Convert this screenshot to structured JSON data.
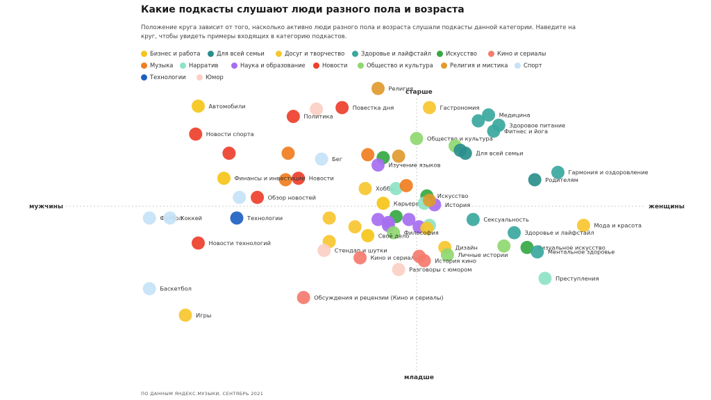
{
  "title": "Какие подкасты слушают люди разного пола и возраста",
  "subtitle": "Положение круга зависит от того, насколько активно люди разного пола и возраста слушали подкасты данной категории. Наведите на круг, чтобы увидеть примеры входящих в категорию подкастов.",
  "source": "ПО ДАННЫМ ЯНДЕКС.МУЗЫКИ, СЕНТЯБРЬ 2021",
  "axes": {
    "top": "старше",
    "bottom": "младше",
    "left": "мужчины",
    "right": "женщины"
  },
  "chart_data": {
    "type": "scatter",
    "title": "Какие подкасты слушают люди разного пола и возраста",
    "xlabel": "мужчины ↔ женщины",
    "ylabel": "младше ↔ старше",
    "xlim": [
      -1,
      1
    ],
    "ylim": [
      -1,
      1
    ],
    "grid": false,
    "legend_position": "top",
    "categories": [
      {
        "name": "Бизнес и работа",
        "color": "#f5c518"
      },
      {
        "name": "Для всей семьи",
        "color": "#2a8f8c"
      },
      {
        "name": "Досуг и творчество",
        "color": "#f7c62f"
      },
      {
        "name": "Здоровье и лайфстайл",
        "color": "#3aa89e"
      },
      {
        "name": "Искусство",
        "color": "#35a843"
      },
      {
        "name": "Кино и сериалы",
        "color": "#f57b6e"
      },
      {
        "name": "Музыка",
        "color": "#f07d1e"
      },
      {
        "name": "Нарратив",
        "color": "#8de3c6"
      },
      {
        "name": "Наука и образование",
        "color": "#a66ef0"
      },
      {
        "name": "Новости",
        "color": "#ee3f2d"
      },
      {
        "name": "Общество и культура",
        "color": "#8ed870"
      },
      {
        "name": "Религия и мистика",
        "color": "#e09a2c"
      },
      {
        "name": "Спорт",
        "color": "#c6e2f7"
      },
      {
        "name": "Технологии",
        "color": "#1f5fc1"
      },
      {
        "name": "Юмор",
        "color": "#fbcfc4"
      }
    ],
    "points": [
      {
        "label": "Религия",
        "category": "Религия и мистика",
        "x": -0.15,
        "y": 0.8
      },
      {
        "label": "Автомобили",
        "category": "Бизнес и работа",
        "x": -0.85,
        "y": 0.68
      },
      {
        "label": "Повестка дня",
        "category": "Новости",
        "x": -0.29,
        "y": 0.67
      },
      {
        "label": "",
        "category": "Юмор",
        "x": -0.39,
        "y": 0.66
      },
      {
        "label": "Политика",
        "category": "Новости",
        "x": -0.48,
        "y": 0.61
      },
      {
        "label": "Гастрономия",
        "category": "Досуг и творчество",
        "x": 0.05,
        "y": 0.67
      },
      {
        "label": "Медицина",
        "category": "Здоровье и лайфстайл",
        "x": 0.28,
        "y": 0.62
      },
      {
        "label": "",
        "category": "Здоровье и лайфстайл",
        "x": 0.24,
        "y": 0.58
      },
      {
        "label": "Здоровое питание",
        "category": "Здоровье и лайфстайл",
        "x": 0.32,
        "y": 0.55
      },
      {
        "label": "Фитнес и йога",
        "category": "Здоровье и лайфстайл",
        "x": 0.3,
        "y": 0.51
      },
      {
        "label": "Новости спорта",
        "category": "Новости",
        "x": -0.86,
        "y": 0.49
      },
      {
        "label": "Общество и культура",
        "category": "Общество и культура",
        "x": 0.0,
        "y": 0.46
      },
      {
        "label": "",
        "category": "Общество и культура",
        "x": 0.15,
        "y": 0.41
      },
      {
        "label": "",
        "category": "Для всей семьи",
        "x": 0.17,
        "y": 0.38
      },
      {
        "label": "Для всей семьи",
        "category": "Для всей семьи",
        "x": 0.19,
        "y": 0.36
      },
      {
        "label": "",
        "category": "Новости",
        "x": -0.73,
        "y": 0.36
      },
      {
        "label": "",
        "category": "Музыка",
        "x": -0.5,
        "y": 0.36
      },
      {
        "label": "Бег",
        "category": "Спорт",
        "x": -0.37,
        "y": 0.32
      },
      {
        "label": "Новости",
        "category": "Новости",
        "x": -0.46,
        "y": 0.19
      },
      {
        "label": "",
        "category": "Музыка",
        "x": -0.51,
        "y": 0.18
      },
      {
        "label": "",
        "category": "Музыка",
        "x": -0.19,
        "y": 0.35
      },
      {
        "label": "",
        "category": "Искусство",
        "x": -0.13,
        "y": 0.33
      },
      {
        "label": "",
        "category": "Религия и мистика",
        "x": -0.07,
        "y": 0.34
      },
      {
        "label": "Изучение языков",
        "category": "Наука и образование",
        "x": -0.15,
        "y": 0.28
      },
      {
        "label": "Гармония и оздоровление",
        "category": "Здоровье и лайфстайл",
        "x": 0.55,
        "y": 0.23
      },
      {
        "label": "Родителям",
        "category": "Для всей семьи",
        "x": 0.46,
        "y": 0.18
      },
      {
        "label": "Финансы и инвестиции",
        "category": "Бизнес и работа",
        "x": -0.75,
        "y": 0.19
      },
      {
        "label": "Хобби",
        "category": "Досуг и творчество",
        "x": -0.2,
        "y": 0.12
      },
      {
        "label": "",
        "category": "Нарратив",
        "x": -0.08,
        "y": 0.12
      },
      {
        "label": "",
        "category": "Музыка",
        "x": -0.04,
        "y": 0.14
      },
      {
        "label": "Искусство",
        "category": "Искусство",
        "x": 0.04,
        "y": 0.07
      },
      {
        "label": "Обзор новостей",
        "category": "Новости",
        "x": -0.62,
        "y": 0.06
      },
      {
        "label": "",
        "category": "Спорт",
        "x": -0.69,
        "y": 0.06
      },
      {
        "label": "Карьера",
        "category": "Бизнес и работа",
        "x": -0.13,
        "y": 0.02
      },
      {
        "label": "История",
        "category": "Наука и образование",
        "x": 0.07,
        "y": 0.01
      },
      {
        "label": "",
        "category": "Нарратив",
        "x": 0.03,
        "y": 0.02
      },
      {
        "label": "",
        "category": "Религия и мистика",
        "x": 0.05,
        "y": 0.04
      },
      {
        "label": "Футбол",
        "category": "Спорт",
        "x": -1.04,
        "y": -0.08
      },
      {
        "label": "Хоккей",
        "category": "Спорт",
        "x": -0.96,
        "y": -0.08
      },
      {
        "label": "Технологии",
        "category": "Технологии",
        "x": -0.7,
        "y": -0.08
      },
      {
        "label": "",
        "category": "Досуг и творчество",
        "x": -0.34,
        "y": -0.08
      },
      {
        "label": "",
        "category": "Искусство",
        "x": -0.08,
        "y": -0.07
      },
      {
        "label": "Сексуальность",
        "category": "Здоровье и лайфстайл",
        "x": 0.22,
        "y": -0.09
      },
      {
        "label": "",
        "category": "Наука и образование",
        "x": -0.15,
        "y": -0.09
      },
      {
        "label": "",
        "category": "Наука и образование",
        "x": -0.11,
        "y": -0.11
      },
      {
        "label": "",
        "category": "Наука и образование",
        "x": -0.03,
        "y": -0.09
      },
      {
        "label": "",
        "category": "Наука и образование",
        "x": 0.01,
        "y": -0.14
      },
      {
        "label": "",
        "category": "Нарратив",
        "x": 0.05,
        "y": -0.13
      },
      {
        "label": "Мода и красота",
        "category": "Досуг и творчество",
        "x": 0.65,
        "y": -0.13
      },
      {
        "label": "",
        "category": "Наука и образование",
        "x": -0.11,
        "y": -0.13
      },
      {
        "label": "",
        "category": "Досуг и творчество",
        "x": -0.24,
        "y": -0.14
      },
      {
        "label": "",
        "category": "Досуг и творчество",
        "x": 0.04,
        "y": -0.15
      },
      {
        "label": "Философия",
        "category": "Общество и культура",
        "x": -0.09,
        "y": -0.18
      },
      {
        "label": "Своё дело",
        "category": "Бизнес и работа",
        "x": -0.19,
        "y": -0.2
      },
      {
        "label": "Здоровье и лайфстайл",
        "category": "Здоровье и лайфстайл",
        "x": 0.38,
        "y": -0.18
      },
      {
        "label": "Новости технологий",
        "category": "Новости",
        "x": -0.85,
        "y": -0.25
      },
      {
        "label": "",
        "category": "Досуг и творчество",
        "x": -0.34,
        "y": -0.24
      },
      {
        "label": "Дизайн",
        "category": "Досуг и творчество",
        "x": 0.11,
        "y": -0.28
      },
      {
        "label": "",
        "category": "Общество и культура",
        "x": 0.34,
        "y": -0.27
      },
      {
        "label": "Визуальное искусство",
        "category": "Искусство",
        "x": 0.43,
        "y": -0.28
      },
      {
        "label": "Стендап и шутки",
        "category": "Юмор",
        "x": -0.36,
        "y": -0.3
      },
      {
        "label": "Ментальное здоровье",
        "category": "Здоровье и лайфстайл",
        "x": 0.47,
        "y": -0.31
      },
      {
        "label": "Личные истории",
        "category": "Общество и культура",
        "x": 0.12,
        "y": -0.33
      },
      {
        "label": "Кино и сериалы",
        "category": "Кино и сериалы",
        "x": -0.22,
        "y": -0.35
      },
      {
        "label": "",
        "category": "Кино и сериалы",
        "x": 0.01,
        "y": -0.34
      },
      {
        "label": "История кино",
        "category": "Кино и сериалы",
        "x": 0.03,
        "y": -0.37
      },
      {
        "label": "Разговоры с юмором",
        "category": "Юмор",
        "x": -0.07,
        "y": -0.43
      },
      {
        "label": "Преступления",
        "category": "Нарратив",
        "x": 0.5,
        "y": -0.49
      },
      {
        "label": "Баскетбол",
        "category": "Спорт",
        "x": -1.04,
        "y": -0.56
      },
      {
        "label": "Обсуждения и рецензии (Кино и сериалы)",
        "category": "Кино и сериалы",
        "x": -0.44,
        "y": -0.62
      },
      {
        "label": "Игры",
        "category": "Досуг и творчество",
        "x": -0.9,
        "y": -0.74
      }
    ]
  }
}
